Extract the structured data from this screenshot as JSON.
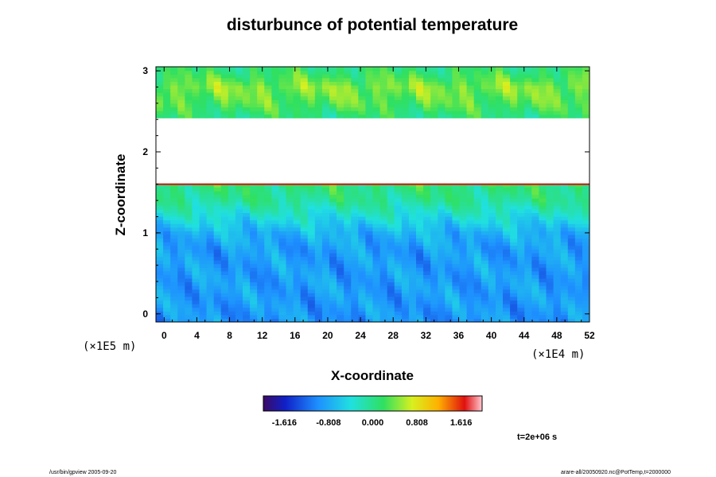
{
  "chart_data": {
    "type": "heatmap",
    "title": "disturbunce of potential temperature",
    "xlabel": "X-coordinate",
    "ylabel": "Z-coordinate",
    "x_scale_label": "(×1E4 m)",
    "y_scale_label": "(×1E5 m)",
    "xlim": [
      -1,
      52
    ],
    "ylim": [
      -0.1,
      3.05
    ],
    "x_ticks": [
      "0",
      "4",
      "8",
      "12",
      "16",
      "20",
      "24",
      "28",
      "32",
      "36",
      "40",
      "44",
      "48",
      "52"
    ],
    "y_ticks": [
      "0",
      "1",
      "2",
      "3"
    ],
    "value_range": [
      -2.0,
      2.0
    ],
    "colorbar_ticks": [
      "-1.616",
      "-0.808",
      "0.000",
      "0.808",
      "1.616"
    ],
    "colorbar_tick_values": [
      -1.616,
      -0.808,
      0.0,
      0.808,
      1.616
    ],
    "time_label": "t=2e+06 s",
    "z_profile": [
      {
        "z": -0.1,
        "value": -0.95
      },
      {
        "z": 0.3,
        "value": -0.9
      },
      {
        "z": 0.8,
        "value": -0.9
      },
      {
        "z": 1.0,
        "value": -0.75
      },
      {
        "z": 1.2,
        "value": -0.4
      },
      {
        "z": 1.4,
        "value": -0.05
      },
      {
        "z": 1.6,
        "value": 0.1
      },
      {
        "z": 2.4,
        "value": 0.0
      },
      {
        "z": 2.6,
        "value": 0.3
      },
      {
        "z": 2.8,
        "value": 0.45
      },
      {
        "z": 3.05,
        "value": 0.05
      }
    ],
    "missing_band": {
      "z_from": 1.6,
      "z_to": 2.4
    },
    "grid": false,
    "legend_placement": "bottom-center colorbar"
  },
  "footer": {
    "program": "/usr/bin/gpview 2005-09-20",
    "source": "arare-all/20050920.nc@PotTemp,t=2000000"
  }
}
